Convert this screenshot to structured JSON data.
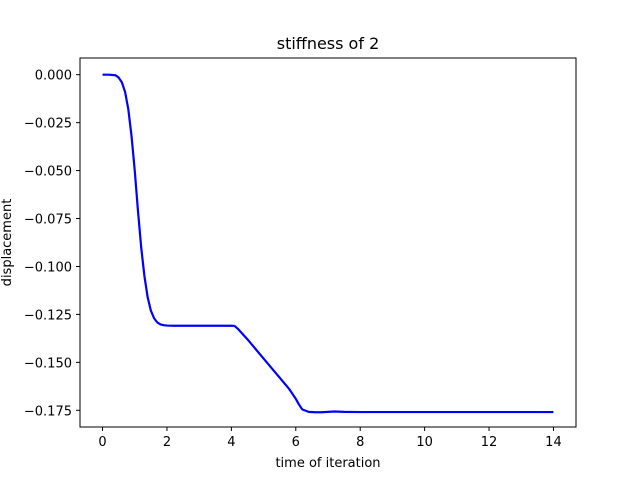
{
  "chart_data": {
    "type": "line",
    "title": "stiffness of 2",
    "xlabel": "time of iteration",
    "ylabel": "displacement",
    "xlim": [
      -0.7,
      14.7
    ],
    "ylim": [
      -0.1837,
      0.0087
    ],
    "xticks": [
      0,
      2,
      4,
      6,
      8,
      10,
      12,
      14
    ],
    "xtick_labels": [
      "0",
      "2",
      "4",
      "6",
      "8",
      "10",
      "12",
      "14"
    ],
    "yticks": [
      0.0,
      -0.025,
      -0.05,
      -0.075,
      -0.1,
      -0.125,
      -0.15,
      -0.175
    ],
    "ytick_labels": [
      "0.000",
      "−0.025",
      "−0.050",
      "−0.075",
      "−0.100",
      "−0.125",
      "−0.150",
      "−0.175"
    ],
    "grid": false,
    "series": [
      {
        "color": "#0000ff",
        "x": [
          0,
          0.2,
          0.4,
          0.5,
          0.6,
          0.7,
          0.8,
          0.9,
          1.0,
          1.1,
          1.2,
          1.3,
          1.4,
          1.5,
          1.6,
          1.7,
          1.8,
          1.9,
          2.0,
          2.2,
          2.5,
          3.0,
          3.5,
          4.0,
          4.1,
          4.2,
          4.5,
          5.0,
          5.5,
          5.8,
          6.0,
          6.1,
          6.2,
          6.4,
          6.6,
          6.8,
          7.0,
          7.2,
          7.5,
          8.0,
          9.0,
          10.0,
          11.0,
          12.0,
          13.0,
          14.0
        ],
        "y": [
          0.0,
          0.0,
          -0.0003,
          -0.0015,
          -0.004,
          -0.009,
          -0.018,
          -0.032,
          -0.05,
          -0.071,
          -0.09,
          -0.105,
          -0.116,
          -0.123,
          -0.127,
          -0.1292,
          -0.1302,
          -0.1306,
          -0.1308,
          -0.1309,
          -0.1309,
          -0.1309,
          -0.1309,
          -0.1309,
          -0.131,
          -0.1325,
          -0.138,
          -0.148,
          -0.158,
          -0.164,
          -0.169,
          -0.172,
          -0.1745,
          -0.1758,
          -0.176,
          -0.176,
          -0.1758,
          -0.1756,
          -0.1758,
          -0.1759,
          -0.1759,
          -0.1759,
          -0.1759,
          -0.1759,
          -0.1759,
          -0.1759
        ]
      }
    ]
  }
}
